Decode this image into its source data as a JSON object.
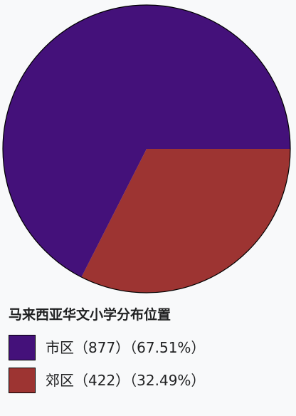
{
  "chart_data": {
    "type": "pie",
    "title": "马来西亚华文小学分布位置",
    "slices": [
      {
        "label": "市区",
        "count": 877,
        "percent": 67.51,
        "color": "#44117a",
        "legend_text": "市区（877）（67.51%）"
      },
      {
        "label": "郊区",
        "count": 422,
        "percent": 32.49,
        "color": "#9d3432",
        "legend_text": "郊区（422）（32.49%）"
      }
    ],
    "legend_placement": "bottom-left"
  }
}
